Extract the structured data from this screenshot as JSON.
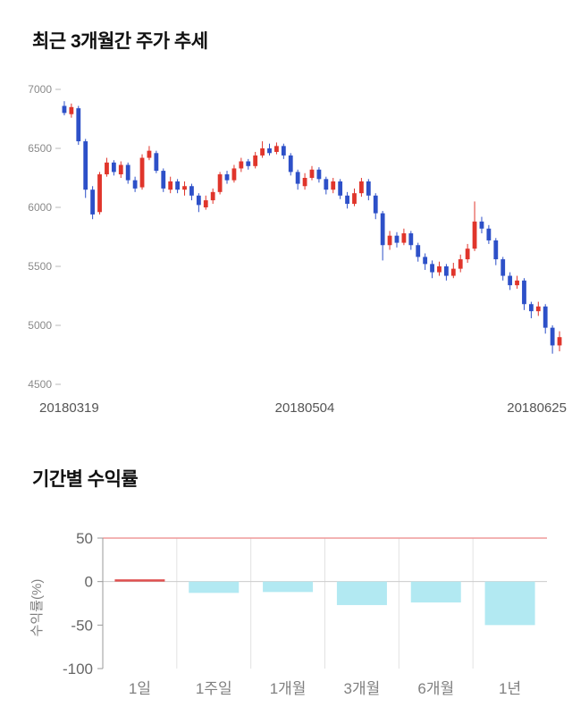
{
  "page": {
    "background": "#ffffff"
  },
  "sections": [
    {
      "title": "최근 3개월간 주가 추세"
    },
    {
      "title": "기간별 수익률"
    }
  ],
  "chart_data": [
    {
      "type": "candlestick",
      "title": "최근 3개월간 주가 추세",
      "ylim": [
        4500,
        7000
      ],
      "yticks": [
        7000,
        6500,
        6000,
        5500,
        5000,
        4500
      ],
      "xtick_labels": [
        "20180319",
        "20180504",
        "20180625"
      ],
      "up_color": "#e0352b",
      "down_color": "#2d50c8",
      "axis_label_color": "#8a8a8a",
      "xlabel_color": "#555555",
      "candles_ohlc": [
        [
          6860,
          6900,
          6780,
          6800
        ],
        [
          6790,
          6880,
          6760,
          6850
        ],
        [
          6840,
          6860,
          6530,
          6560
        ],
        [
          6560,
          6580,
          6080,
          6150
        ],
        [
          6150,
          6180,
          5900,
          5940
        ],
        [
          5960,
          6300,
          5940,
          6280
        ],
        [
          6280,
          6420,
          6260,
          6380
        ],
        [
          6380,
          6400,
          6270,
          6300
        ],
        [
          6280,
          6390,
          6250,
          6360
        ],
        [
          6360,
          6380,
          6200,
          6230
        ],
        [
          6230,
          6260,
          6130,
          6160
        ],
        [
          6170,
          6450,
          6150,
          6420
        ],
        [
          6420,
          6520,
          6400,
          6480
        ],
        [
          6460,
          6480,
          6290,
          6310
        ],
        [
          6310,
          6330,
          6130,
          6160
        ],
        [
          6150,
          6260,
          6120,
          6220
        ],
        [
          6220,
          6240,
          6120,
          6150
        ],
        [
          6150,
          6220,
          6100,
          6180
        ],
        [
          6180,
          6200,
          6060,
          6100
        ],
        [
          6100,
          6120,
          5960,
          6020
        ],
        [
          6000,
          6100,
          5980,
          6060
        ],
        [
          6060,
          6160,
          6030,
          6130
        ],
        [
          6130,
          6300,
          6110,
          6280
        ],
        [
          6280,
          6310,
          6200,
          6230
        ],
        [
          6230,
          6360,
          6210,
          6330
        ],
        [
          6330,
          6420,
          6300,
          6390
        ],
        [
          6390,
          6410,
          6320,
          6350
        ],
        [
          6350,
          6470,
          6330,
          6440
        ],
        [
          6440,
          6560,
          6420,
          6500
        ],
        [
          6500,
          6540,
          6440,
          6460
        ],
        [
          6470,
          6550,
          6450,
          6520
        ],
        [
          6520,
          6540,
          6410,
          6440
        ],
        [
          6440,
          6460,
          6270,
          6300
        ],
        [
          6300,
          6320,
          6150,
          6200
        ],
        [
          6180,
          6290,
          6150,
          6250
        ],
        [
          6250,
          6350,
          6230,
          6320
        ],
        [
          6320,
          6340,
          6210,
          6240
        ],
        [
          6240,
          6260,
          6110,
          6150
        ],
        [
          6150,
          6250,
          6120,
          6220
        ],
        [
          6220,
          6240,
          6070,
          6100
        ],
        [
          6100,
          6130,
          5990,
          6030
        ],
        [
          6030,
          6160,
          6010,
          6120
        ],
        [
          6120,
          6250,
          6090,
          6220
        ],
        [
          6220,
          6240,
          6060,
          6100
        ],
        [
          6100,
          6120,
          5900,
          5950
        ],
        [
          5950,
          5970,
          5550,
          5680
        ],
        [
          5680,
          5800,
          5640,
          5760
        ],
        [
          5760,
          5790,
          5660,
          5700
        ],
        [
          5700,
          5820,
          5680,
          5780
        ],
        [
          5780,
          5800,
          5640,
          5680
        ],
        [
          5680,
          5700,
          5540,
          5580
        ],
        [
          5580,
          5610,
          5470,
          5520
        ],
        [
          5520,
          5550,
          5400,
          5450
        ],
        [
          5450,
          5540,
          5420,
          5500
        ],
        [
          5500,
          5520,
          5380,
          5420
        ],
        [
          5420,
          5530,
          5400,
          5480
        ],
        [
          5480,
          5600,
          5450,
          5560
        ],
        [
          5560,
          5690,
          5530,
          5650
        ],
        [
          5650,
          6050,
          5630,
          5880
        ],
        [
          5880,
          5920,
          5780,
          5820
        ],
        [
          5820,
          5850,
          5690,
          5720
        ],
        [
          5720,
          5740,
          5510,
          5560
        ],
        [
          5560,
          5580,
          5380,
          5420
        ],
        [
          5420,
          5450,
          5300,
          5340
        ],
        [
          5340,
          5420,
          5310,
          5380
        ],
        [
          5380,
          5400,
          5130,
          5180
        ],
        [
          5180,
          5200,
          5060,
          5120
        ],
        [
          5120,
          5200,
          5080,
          5160
        ],
        [
          5160,
          5180,
          4930,
          4980
        ],
        [
          4980,
          5000,
          4760,
          4830
        ],
        [
          4830,
          4950,
          4780,
          4900
        ]
      ]
    },
    {
      "type": "bar",
      "title": "기간별 수익률",
      "ylabel": "수익률(%)",
      "categories": [
        "1일",
        "1주일",
        "1개월",
        "3개월",
        "6개월",
        "1년"
      ],
      "values": [
        1,
        -13,
        -12,
        -27,
        -24,
        -50
      ],
      "ylim": [
        -100,
        50
      ],
      "yticks": [
        50,
        0,
        -50,
        -100
      ],
      "grid": true,
      "legend": "none",
      "bar_color_negative": "#b2e9f2",
      "bar_color_positive": "#e0504f",
      "top_border_color": "#ef9a9a",
      "zero_line_color": "#cccccc",
      "gridline_color": "#e2e2e2",
      "axis_color": "#999999",
      "tick_label_color": "#666666",
      "category_label_color": "#808080"
    }
  ]
}
